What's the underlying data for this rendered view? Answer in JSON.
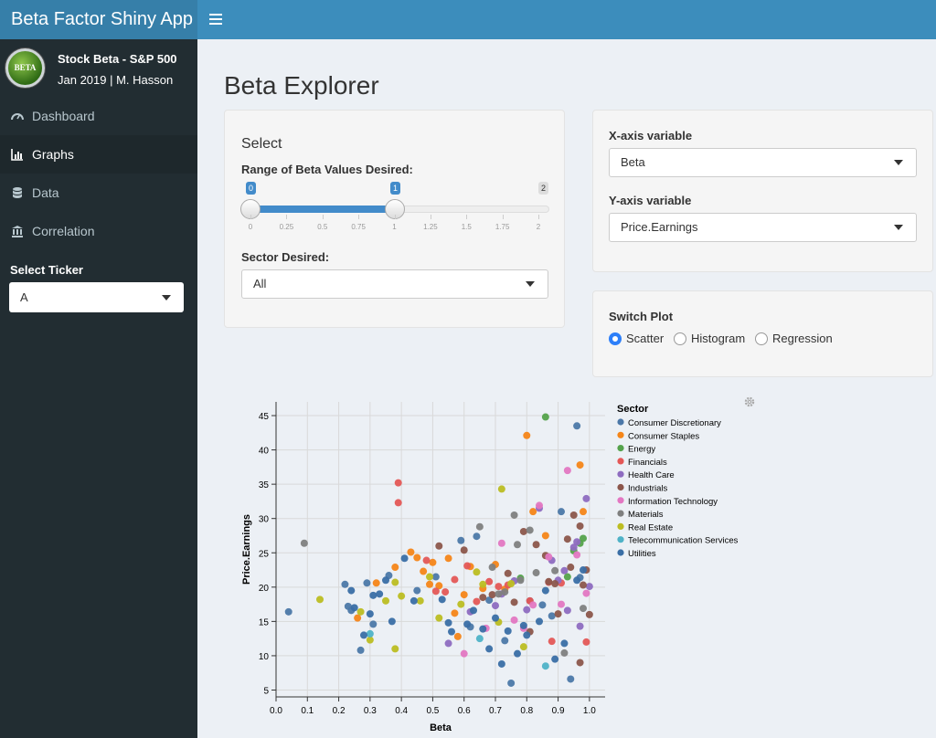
{
  "app": {
    "title": "Beta Factor Shiny App"
  },
  "user": {
    "name": "Stock Beta - S&P 500",
    "subtitle": "Jan 2019 | M. Hasson",
    "avatar_text": "BETA"
  },
  "sidebar": {
    "items": [
      {
        "label": "Dashboard",
        "icon": "dashboard-icon"
      },
      {
        "label": "Graphs",
        "icon": "bar-chart-icon",
        "active": true
      },
      {
        "label": "Data",
        "icon": "database-icon"
      },
      {
        "label": "Correlation",
        "icon": "bank-icon"
      }
    ],
    "ticker_label": "Select Ticker",
    "ticker_value": "A"
  },
  "main": {
    "title": "Beta Explorer",
    "select_box": {
      "heading": "Select",
      "range_label": "Range of Beta Values Desired:",
      "range_low": "0",
      "range_high": "1",
      "range_max": "2",
      "ticks": [
        "0",
        "0.25",
        "0.5",
        "0.75",
        "1",
        "1.25",
        "1.5",
        "1.75",
        "2"
      ],
      "sector_label": "Sector Desired:",
      "sector_value": "All"
    },
    "axis_box": {
      "x_label": "X-axis variable",
      "x_value": "Beta",
      "y_label": "Y-axis variable",
      "y_value": "Price.Earnings"
    },
    "switch_box": {
      "label": "Switch Plot",
      "options": [
        {
          "label": "Scatter",
          "selected": true
        },
        {
          "label": "Histogram",
          "selected": false
        },
        {
          "label": "Regression",
          "selected": false
        }
      ]
    }
  },
  "chart_data": {
    "type": "scatter",
    "xlabel": "Beta",
    "ylabel": "Price.Earnings",
    "xlim": [
      0,
      1.05
    ],
    "ylim": [
      4,
      47
    ],
    "xticks": [
      "0.0",
      "0.1",
      "0.2",
      "0.3",
      "0.4",
      "0.5",
      "0.6",
      "0.7",
      "0.8",
      "0.9",
      "1.0"
    ],
    "yticks": [
      "5",
      "10",
      "15",
      "20",
      "25",
      "30",
      "35",
      "40",
      "45"
    ],
    "grid": true,
    "legend_title": "Sector",
    "legend_position": "right",
    "series": [
      {
        "name": "Consumer Discretionary",
        "color": "#4c78a8",
        "points": [
          [
            0.04,
            16.4
          ],
          [
            0.22,
            20.4
          ],
          [
            0.23,
            17.2
          ],
          [
            0.24,
            16.6
          ],
          [
            0.27,
            10.8
          ],
          [
            0.29,
            20.6
          ],
          [
            0.31,
            14.6
          ],
          [
            0.36,
            21.7
          ],
          [
            0.51,
            21.5
          ],
          [
            0.59,
            26.8
          ],
          [
            0.64,
            27.4
          ],
          [
            0.68,
            18.1
          ],
          [
            0.73,
            12.2
          ],
          [
            0.75,
            6.0
          ],
          [
            0.81,
            18.0
          ],
          [
            0.88,
            15.8
          ],
          [
            0.91,
            31.0
          ],
          [
            0.94,
            6.6
          ],
          [
            0.96,
            43.5
          ],
          [
            0.97,
            21.4
          ],
          [
            0.85,
            17.4
          ],
          [
            0.62,
            14.2
          ],
          [
            0.45,
            19.5
          ]
        ]
      },
      {
        "name": "Consumer Staples",
        "color": "#f58518",
        "points": [
          [
            0.26,
            15.5
          ],
          [
            0.32,
            20.6
          ],
          [
            0.38,
            22.9
          ],
          [
            0.43,
            25.1
          ],
          [
            0.45,
            24.3
          ],
          [
            0.47,
            22.3
          ],
          [
            0.49,
            20.4
          ],
          [
            0.52,
            20.2
          ],
          [
            0.55,
            24.2
          ],
          [
            0.57,
            16.2
          ],
          [
            0.6,
            18.9
          ],
          [
            0.62,
            23.0
          ],
          [
            0.7,
            23.3
          ],
          [
            0.73,
            19.7
          ],
          [
            0.8,
            42.1
          ],
          [
            0.82,
            31.0
          ],
          [
            0.86,
            27.5
          ],
          [
            0.97,
            37.8
          ],
          [
            0.98,
            31.0
          ],
          [
            0.66,
            19.8
          ],
          [
            0.5,
            23.6
          ],
          [
            0.58,
            12.8
          ]
        ]
      },
      {
        "name": "Energy",
        "color": "#54a24b",
        "points": [
          [
            0.86,
            44.8
          ],
          [
            0.95,
            25.3
          ],
          [
            0.97,
            26.4
          ],
          [
            0.93,
            21.5
          ],
          [
            0.98,
            27.1
          ],
          [
            0.78,
            21.3
          ]
        ]
      },
      {
        "name": "Financials",
        "color": "#e45756",
        "points": [
          [
            0.39,
            35.2
          ],
          [
            0.39,
            32.3
          ],
          [
            0.48,
            23.9
          ],
          [
            0.51,
            19.4
          ],
          [
            0.54,
            19.3
          ],
          [
            0.61,
            23.1
          ],
          [
            0.64,
            17.9
          ],
          [
            0.68,
            20.8
          ],
          [
            0.71,
            20.1
          ],
          [
            0.74,
            20.3
          ],
          [
            0.81,
            18.0
          ],
          [
            0.87,
            20.7
          ],
          [
            0.91,
            20.6
          ],
          [
            0.99,
            12.0
          ],
          [
            0.88,
            12.1
          ],
          [
            0.57,
            21.1
          ]
        ]
      },
      {
        "name": "Health Care",
        "color": "#8e6cc0",
        "points": [
          [
            0.55,
            11.8
          ],
          [
            0.62,
            16.4
          ],
          [
            0.7,
            17.3
          ],
          [
            0.76,
            20.9
          ],
          [
            0.8,
            16.7
          ],
          [
            0.84,
            31.5
          ],
          [
            0.9,
            21.0
          ],
          [
            0.92,
            22.4
          ],
          [
            0.95,
            25.8
          ],
          [
            0.96,
            26.6
          ],
          [
            0.99,
            32.9
          ],
          [
            1.0,
            20.1
          ],
          [
            0.97,
            14.3
          ],
          [
            0.93,
            16.6
          ],
          [
            0.88,
            23.9
          ],
          [
            0.72,
            19.0
          ]
        ]
      },
      {
        "name": "Industrials",
        "color": "#8c564b",
        "points": [
          [
            0.52,
            26.0
          ],
          [
            0.6,
            25.4
          ],
          [
            0.66,
            18.5
          ],
          [
            0.69,
            18.9
          ],
          [
            0.76,
            17.8
          ],
          [
            0.79,
            28.1
          ],
          [
            0.83,
            26.2
          ],
          [
            0.86,
            24.6
          ],
          [
            0.87,
            20.8
          ],
          [
            0.89,
            20.5
          ],
          [
            0.9,
            16.1
          ],
          [
            0.93,
            27.0
          ],
          [
            0.95,
            30.5
          ],
          [
            0.97,
            28.9
          ],
          [
            0.98,
            20.3
          ],
          [
            0.99,
            22.5
          ],
          [
            1.0,
            16.0
          ],
          [
            0.97,
            9.0
          ],
          [
            0.94,
            22.9
          ],
          [
            0.81,
            13.5
          ],
          [
            0.74,
            22.0
          ]
        ]
      },
      {
        "name": "Information Technology",
        "color": "#e377c2",
        "points": [
          [
            0.6,
            10.3
          ],
          [
            0.72,
            26.4
          ],
          [
            0.79,
            14.0
          ],
          [
            0.84,
            31.9
          ],
          [
            0.87,
            24.4
          ],
          [
            0.93,
            37.0
          ],
          [
            0.96,
            24.7
          ],
          [
            0.99,
            19.1
          ],
          [
            0.91,
            17.5
          ],
          [
            0.82,
            17.4
          ],
          [
            0.76,
            15.2
          ],
          [
            0.67,
            14.0
          ]
        ]
      },
      {
        "name": "Materials",
        "color": "#7f7f7f",
        "points": [
          [
            0.09,
            26.4
          ],
          [
            0.65,
            28.8
          ],
          [
            0.69,
            22.9
          ],
          [
            0.73,
            19.3
          ],
          [
            0.76,
            30.5
          ],
          [
            0.78,
            21.0
          ],
          [
            0.81,
            28.3
          ],
          [
            0.83,
            22.1
          ],
          [
            0.89,
            22.4
          ],
          [
            0.92,
            10.4
          ],
          [
            0.98,
            16.9
          ],
          [
            0.77,
            26.2
          ],
          [
            0.71,
            19.0
          ]
        ]
      },
      {
        "name": "Real Estate",
        "color": "#bcbd22",
        "points": [
          [
            0.14,
            18.2
          ],
          [
            0.27,
            16.4
          ],
          [
            0.3,
            12.3
          ],
          [
            0.35,
            18.0
          ],
          [
            0.38,
            11.0
          ],
          [
            0.38,
            20.7
          ],
          [
            0.4,
            18.7
          ],
          [
            0.46,
            18.0
          ],
          [
            0.49,
            21.5
          ],
          [
            0.52,
            15.5
          ],
          [
            0.59,
            17.5
          ],
          [
            0.64,
            22.2
          ],
          [
            0.72,
            34.3
          ],
          [
            0.75,
            20.5
          ],
          [
            0.79,
            11.3
          ],
          [
            0.71,
            14.9
          ],
          [
            0.66,
            20.4
          ]
        ]
      },
      {
        "name": "Telecommunication Services",
        "color": "#4fb2c7",
        "points": [
          [
            0.3,
            13.2
          ],
          [
            0.65,
            12.5
          ],
          [
            0.86,
            8.5
          ]
        ]
      },
      {
        "name": "Utilities",
        "color": "#3a6ea5",
        "points": [
          [
            0.24,
            19.5
          ],
          [
            0.25,
            17.0
          ],
          [
            0.28,
            13.0
          ],
          [
            0.3,
            16.1
          ],
          [
            0.31,
            18.8
          ],
          [
            0.33,
            19.0
          ],
          [
            0.35,
            21.0
          ],
          [
            0.37,
            15.0
          ],
          [
            0.41,
            24.2
          ],
          [
            0.44,
            18.0
          ],
          [
            0.53,
            18.2
          ],
          [
            0.55,
            14.8
          ],
          [
            0.56,
            13.5
          ],
          [
            0.61,
            14.6
          ],
          [
            0.66,
            13.9
          ],
          [
            0.68,
            11.0
          ],
          [
            0.7,
            15.5
          ],
          [
            0.72,
            8.8
          ],
          [
            0.74,
            13.6
          ],
          [
            0.77,
            10.3
          ],
          [
            0.8,
            13.0
          ],
          [
            0.84,
            15.0
          ],
          [
            0.86,
            19.5
          ],
          [
            0.89,
            9.5
          ],
          [
            0.92,
            11.8
          ],
          [
            0.96,
            21.0
          ],
          [
            0.98,
            22.5
          ],
          [
            0.63,
            16.6
          ],
          [
            0.79,
            14.4
          ]
        ]
      }
    ]
  }
}
